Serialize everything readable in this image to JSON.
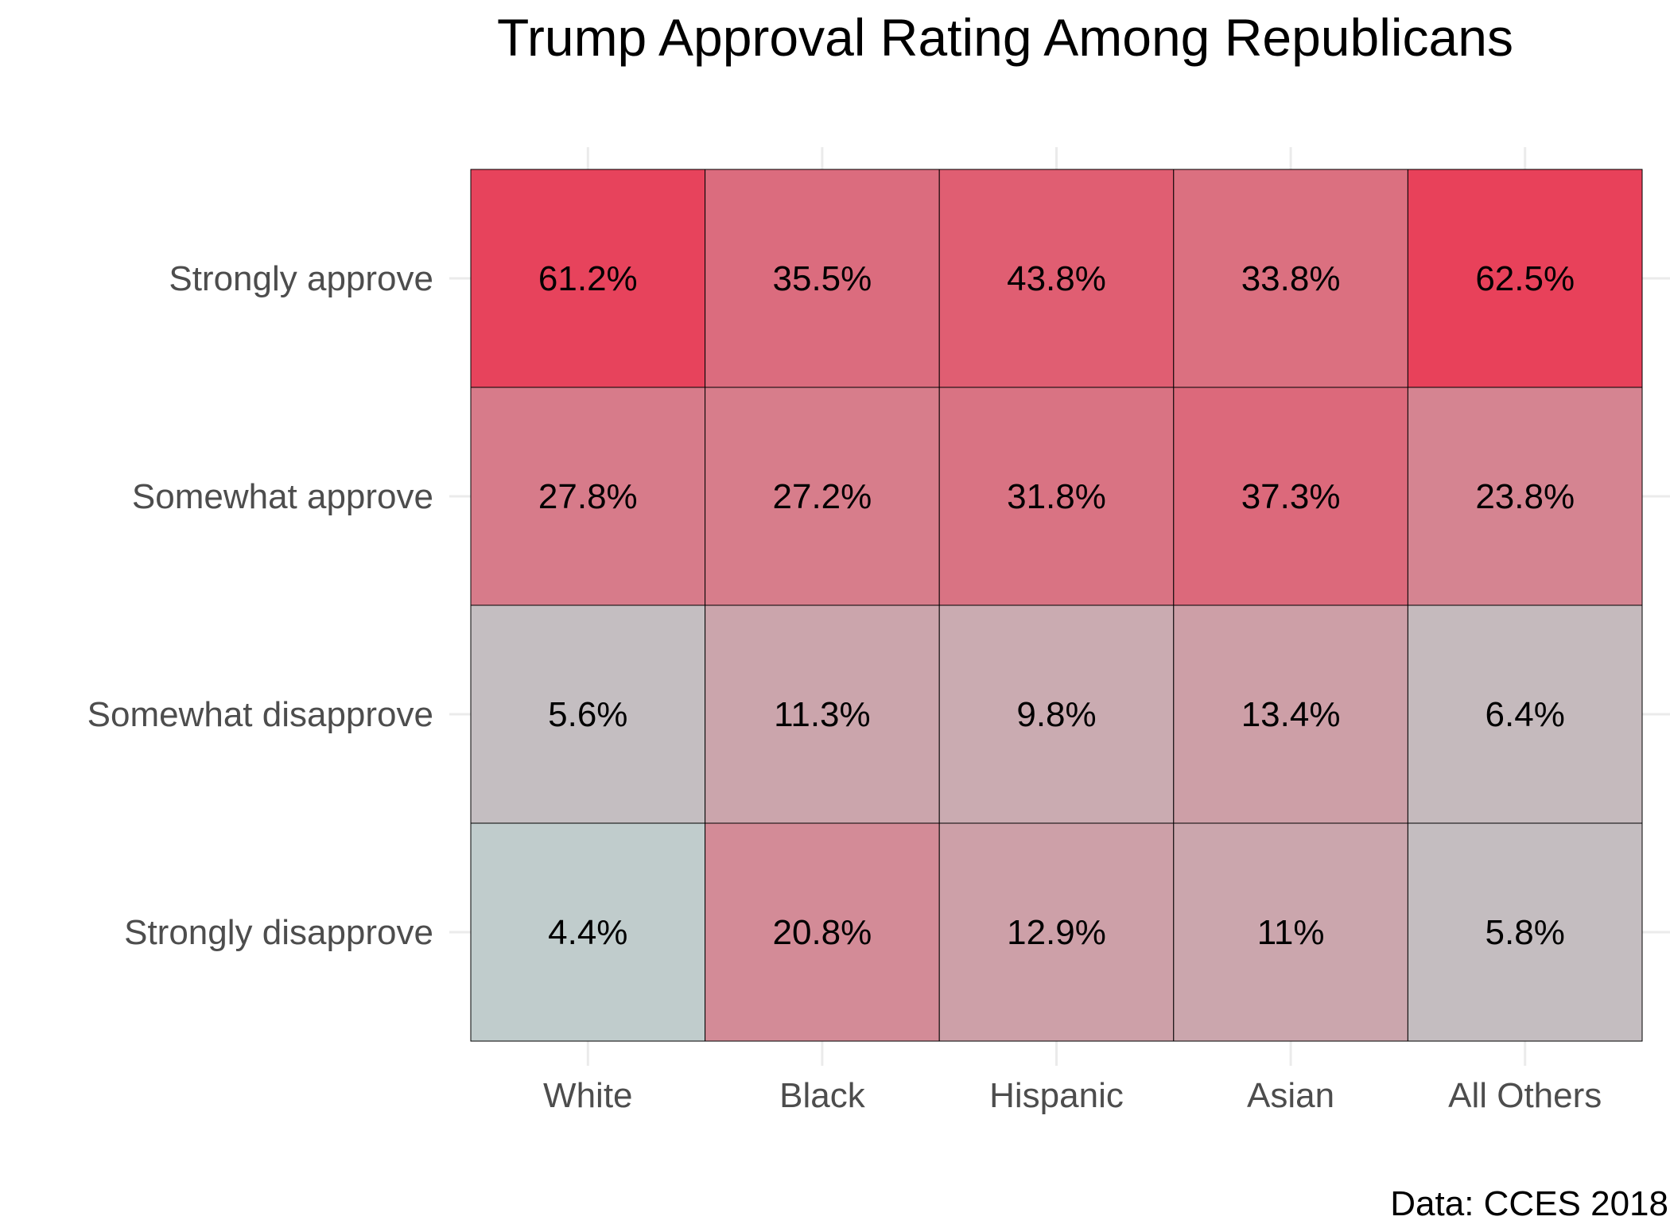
{
  "chart_data": {
    "type": "heatmap",
    "title": "Trump Approval Rating Among Republicans",
    "caption": "Data: CCES 2018",
    "xlabel": "",
    "ylabel": "",
    "grid": true,
    "legend": "none",
    "x_categories": [
      "White",
      "Black",
      "Hispanic",
      "Asian",
      "All Others"
    ],
    "y_categories": [
      "Strongly approve",
      "Somewhat approve",
      "Somewhat disapprove",
      "Strongly disapprove"
    ],
    "values": [
      [
        61.2,
        35.5,
        43.8,
        33.8,
        62.5
      ],
      [
        27.8,
        27.2,
        31.8,
        37.3,
        23.8
      ],
      [
        5.6,
        11.3,
        9.8,
        13.4,
        6.4
      ],
      [
        4.4,
        20.8,
        12.9,
        11.0,
        5.8
      ]
    ],
    "labels": [
      [
        "61.2%",
        "35.5%",
        "43.8%",
        "33.8%",
        "62.5%"
      ],
      [
        "27.8%",
        "27.2%",
        "31.8%",
        "37.3%",
        "23.8%"
      ],
      [
        "5.6%",
        "11.3%",
        "9.8%",
        "13.4%",
        "6.4%"
      ],
      [
        "4.4%",
        "20.8%",
        "12.9%",
        "11%",
        "5.8%"
      ]
    ],
    "color_scale": {
      "low": "#c0cccc",
      "high": "#e8415a",
      "domain": [
        4.4,
        62.5
      ]
    }
  }
}
